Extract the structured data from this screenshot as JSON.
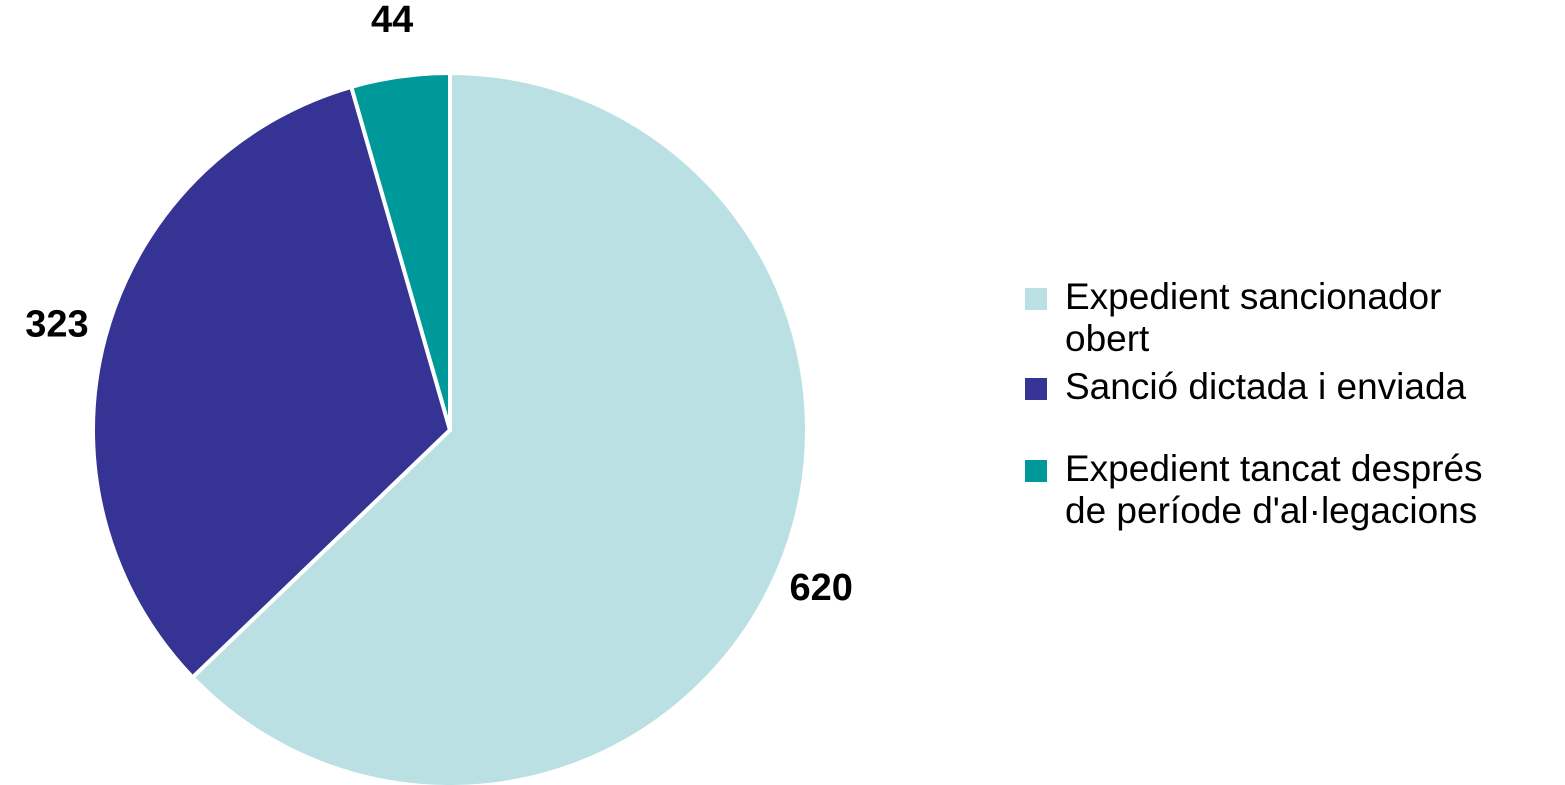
{
  "chart_data": {
    "type": "pie",
    "categories": [
      "Expedient sancionador obert",
      "Sanció dictada i enviada",
      "Expedient tancat després de període d'al·legacions"
    ],
    "values": [
      620,
      323,
      44
    ],
    "value_labels": [
      "620",
      "323",
      "44"
    ],
    "colors": [
      "#bae0e3",
      "#353495",
      "#009999"
    ],
    "start_angle_deg": 0,
    "direction": "clockwise",
    "legend_position": "right",
    "legend": [
      {
        "lines": [
          "Expedient sancionador",
          "obert"
        ],
        "color": "#bae0e3"
      },
      {
        "lines": [
          "Sanció dictada i enviada"
        ],
        "color": "#353495"
      },
      {
        "lines": [
          "Expedient tancat després",
          "de període d'al·legacions"
        ],
        "color": "#009999"
      }
    ],
    "title": ""
  }
}
